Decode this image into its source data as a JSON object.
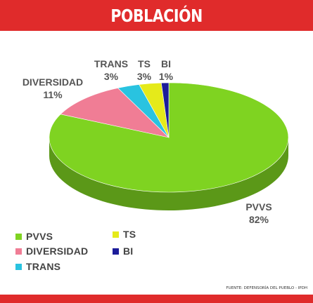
{
  "header": {
    "title": "POBLACIÓN"
  },
  "source": "FUENTE: DEFENSORÍA DEL PUEBLO - IPDH",
  "chart_data": {
    "type": "pie",
    "title": "POBLACIÓN",
    "labels": [
      "PVVS",
      "DIVERSIDAD",
      "TRANS",
      "TS",
      "BI"
    ],
    "values": [
      82,
      11,
      3,
      3,
      1
    ],
    "value_labels": [
      "82%",
      "11%",
      "3%",
      "3%",
      "1%"
    ],
    "colors": [
      "#7fd321",
      "#f07d95",
      "#29c3e0",
      "#e5ea1a",
      "#1c1c9a"
    ],
    "legend_placement": "bottom-left",
    "style": "3d"
  }
}
